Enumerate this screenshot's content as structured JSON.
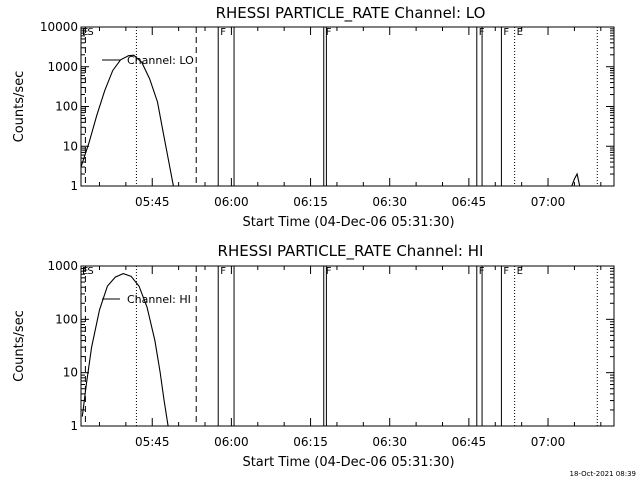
{
  "timestamp": "18-Oct-2021 08:39",
  "chart_data": [
    {
      "type": "line",
      "title": "RHESSI PARTICLE_RATE Channel: LO",
      "xlabel": "Start Time (04-Dec-06 05:31:30)",
      "ylabel": "Counts/sec",
      "yscale": "log",
      "ylim": [
        1,
        10000
      ],
      "xlim": [
        "05:31:30",
        "07:12:30"
      ],
      "xticks": [
        "05:45",
        "06:00",
        "06:15",
        "06:30",
        "06:45",
        "07:00"
      ],
      "yticks": [
        "1",
        "10",
        "100",
        "1000",
        "10000"
      ],
      "series": [
        {
          "name": "Channel: LO",
          "x": [
            "05:31:30",
            "05:33:00",
            "05:34:30",
            "05:36:00",
            "05:37:30",
            "05:39:00",
            "05:40:30",
            "05:41:30",
            "05:43:00",
            "05:44:30",
            "05:46:00",
            "05:47:00",
            "05:48:00",
            "05:49:00"
          ],
          "y": [
            3,
            12,
            60,
            250,
            800,
            1500,
            1900,
            1950,
            1300,
            500,
            130,
            25,
            5,
            1
          ]
        },
        {
          "name": "",
          "x": [
            "07:04:30",
            "07:05:00",
            "07:05:30",
            "07:06:00"
          ],
          "y": [
            1,
            1.5,
            2,
            1
          ]
        }
      ],
      "markers": [
        {
          "time": "05:32:20",
          "style": "dashed",
          "label": "S"
        },
        {
          "time": "05:42:00",
          "style": "dotted",
          "label": ""
        },
        {
          "time": "05:53:20",
          "style": "dashed",
          "label": ""
        },
        {
          "time": "05:57:30",
          "style": "solid",
          "label": "F"
        },
        {
          "time": "06:00:30",
          "style": "solid",
          "label": ""
        },
        {
          "time": "06:17:30",
          "style": "solid",
          "label": "F"
        },
        {
          "time": "06:18:00",
          "style": "solid",
          "label": ""
        },
        {
          "time": "06:46:30",
          "style": "solid",
          "label": "F"
        },
        {
          "time": "06:47:30",
          "style": "solid",
          "label": ""
        },
        {
          "time": "06:51:10",
          "style": "solid",
          "label": "F"
        },
        {
          "time": "06:53:40",
          "style": "dotted",
          "label": "E"
        },
        {
          "time": "07:09:20",
          "style": "dotted",
          "label": ""
        }
      ],
      "corner_flag": "E"
    },
    {
      "type": "line",
      "title": "RHESSI PARTICLE_RATE Channel: HI",
      "xlabel": "Start Time (04-Dec-06 05:31:30)",
      "ylabel": "Counts/sec",
      "yscale": "log",
      "ylim": [
        1,
        1000
      ],
      "xlim": [
        "05:31:30",
        "07:12:30"
      ],
      "xticks": [
        "05:45",
        "06:00",
        "06:15",
        "06:30",
        "06:45",
        "07:00"
      ],
      "yticks": [
        "1",
        "10",
        "100",
        "1000"
      ],
      "series": [
        {
          "name": "Channel: HI",
          "x": [
            "05:31:45",
            "05:32:30",
            "05:33:30",
            "05:35:00",
            "05:36:30",
            "05:38:00",
            "05:39:30",
            "05:41:00",
            "05:42:30",
            "05:44:00",
            "05:45:30",
            "05:46:30",
            "05:47:15",
            "05:48:00"
          ],
          "y": [
            1.5,
            6,
            30,
            150,
            420,
            620,
            720,
            640,
            420,
            170,
            40,
            10,
            3,
            1
          ]
        }
      ],
      "markers": [
        {
          "time": "05:32:20",
          "style": "dashed",
          "label": "S"
        },
        {
          "time": "05:42:00",
          "style": "dotted",
          "label": ""
        },
        {
          "time": "05:53:20",
          "style": "dashed",
          "label": ""
        },
        {
          "time": "05:57:30",
          "style": "solid",
          "label": "F"
        },
        {
          "time": "06:00:30",
          "style": "solid",
          "label": ""
        },
        {
          "time": "06:17:30",
          "style": "solid",
          "label": "F"
        },
        {
          "time": "06:18:00",
          "style": "solid",
          "label": ""
        },
        {
          "time": "06:46:30",
          "style": "solid",
          "label": "F"
        },
        {
          "time": "06:47:30",
          "style": "solid",
          "label": ""
        },
        {
          "time": "06:51:10",
          "style": "solid",
          "label": "F"
        },
        {
          "time": "06:53:40",
          "style": "dotted",
          "label": "E"
        },
        {
          "time": "07:09:20",
          "style": "dotted",
          "label": ""
        }
      ],
      "corner_flag": "E"
    }
  ]
}
